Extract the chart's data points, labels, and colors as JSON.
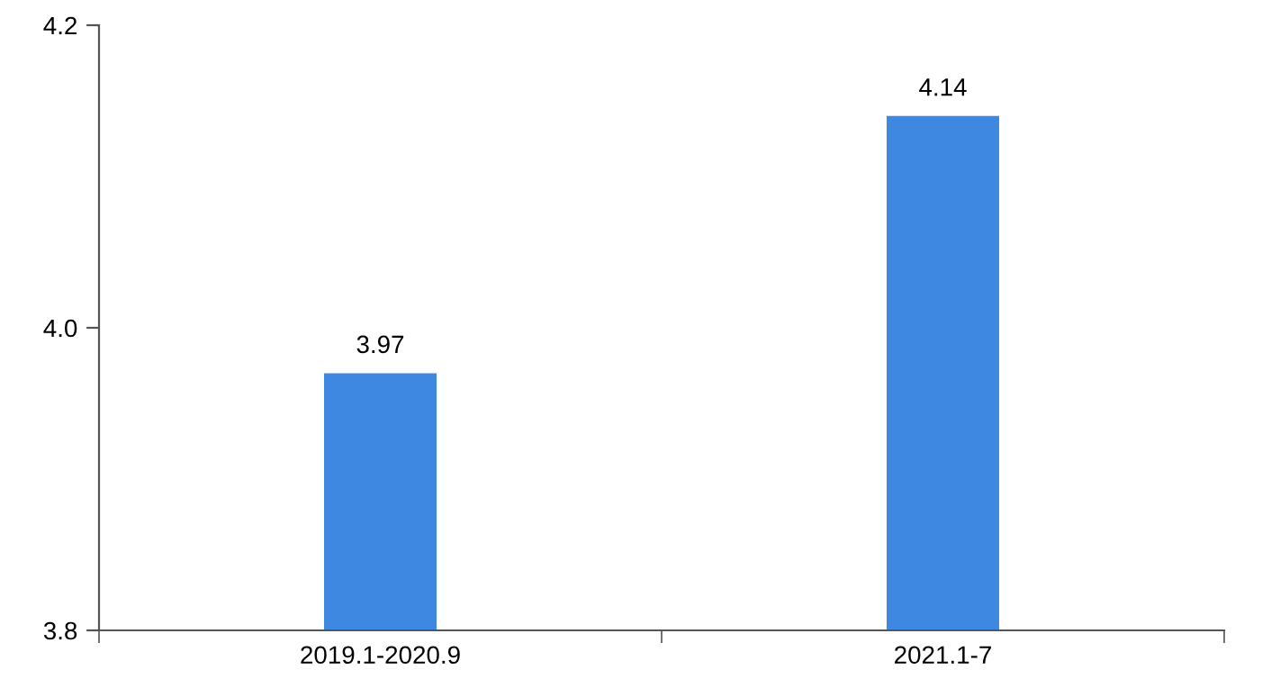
{
  "chart_data": {
    "type": "bar",
    "categories": [
      "2019.1-2020.9",
      "2021.1-7"
    ],
    "values": [
      3.97,
      4.14
    ],
    "color": "#3f88e2",
    "ylim": [
      3.8,
      4.2
    ],
    "yticks": [
      3.8,
      {
        "value": 4.0,
        "label": "4.0"
      },
      4.2
    ],
    "data_labels": true,
    "grid": false
  }
}
